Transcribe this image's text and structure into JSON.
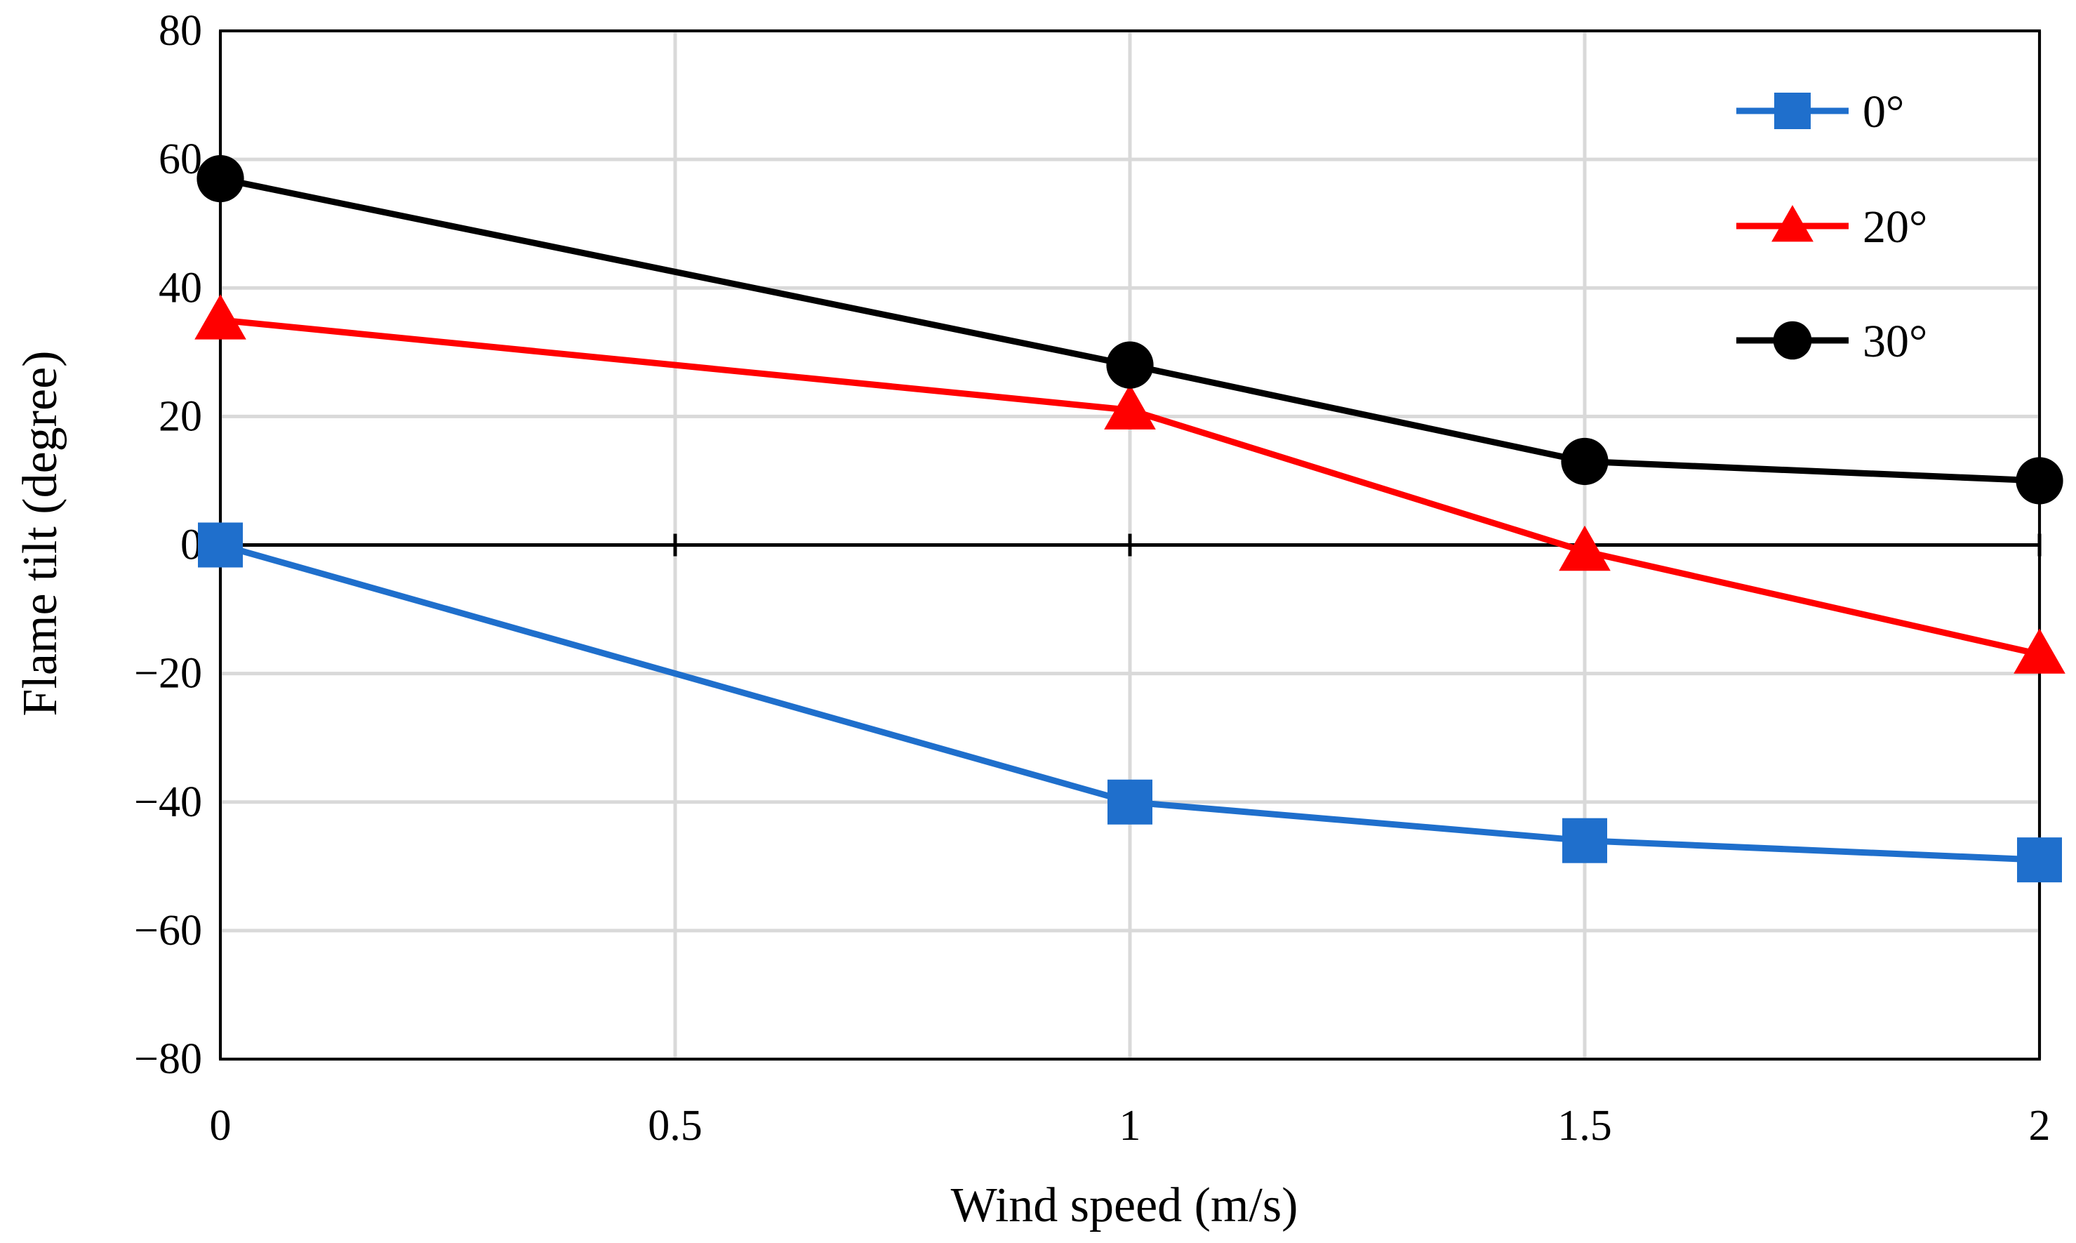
{
  "chart_data": {
    "type": "line",
    "title": "",
    "xlabel": "Wind speed (m/s)",
    "ylabel": "Flame tilt (degree)",
    "x": [
      0,
      1,
      1.5,
      2
    ],
    "xlim": [
      0,
      2
    ],
    "ylim": [
      -80,
      80
    ],
    "x_ticks": [
      0,
      0.5,
      1,
      1.5,
      2
    ],
    "y_ticks": [
      80,
      60,
      40,
      20,
      0,
      -20,
      -40,
      -60,
      -80
    ],
    "x_tick_labels": [
      "0",
      "0.5",
      "1",
      "1.5",
      "2"
    ],
    "y_tick_labels": [
      "80",
      "60",
      "40",
      "20",
      "0",
      "−20",
      "−40",
      "−60",
      "−80"
    ],
    "grid": true,
    "legend_position": "top-right",
    "series": [
      {
        "name": "0°",
        "marker": "square",
        "color": "#1f6fcc",
        "values": [
          0,
          -40,
          -46,
          -49
        ]
      },
      {
        "name": "20°",
        "marker": "triangle",
        "color": "#ff0000",
        "values": [
          35,
          21,
          -1,
          -17
        ]
      },
      {
        "name": "30°",
        "marker": "circle",
        "color": "#000000",
        "values": [
          57,
          28,
          13,
          10
        ]
      }
    ]
  }
}
